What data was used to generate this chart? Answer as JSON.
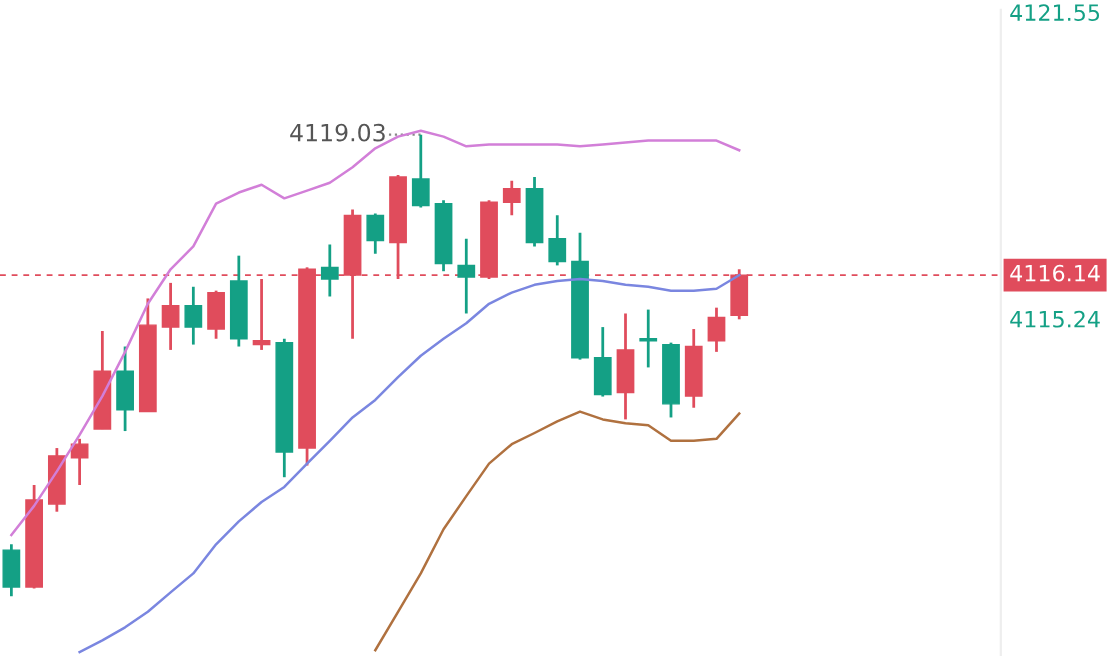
{
  "chart_data": {
    "type": "candlestick",
    "categories": [
      null,
      null,
      null,
      null,
      null,
      null,
      null,
      null,
      null,
      null,
      null,
      null,
      null,
      null,
      null,
      null,
      null,
      null,
      null,
      null,
      null,
      null,
      null,
      null,
      null,
      null,
      null,
      null,
      null,
      null,
      null,
      null,
      null
    ],
    "ohlc": [
      [
        4110.48,
        4110.6,
        4109.53,
        4109.72
      ],
      [
        4109.72,
        4111.82,
        4109.69,
        4111.51
      ],
      [
        4111.43,
        4112.58,
        4111.27,
        4112.42
      ],
      [
        4112.38,
        4112.77,
        4111.82,
        4112.66
      ],
      [
        4112.97,
        4114.99,
        4112.97,
        4114.16
      ],
      [
        4114.16,
        4114.67,
        4112.93,
        4113.37
      ],
      [
        4113.33,
        4115.66,
        4113.33,
        4115.11
      ],
      [
        4115.07,
        4115.98,
        4114.6,
        4115.51
      ],
      [
        4115.51,
        4115.9,
        4114.71,
        4115.07
      ],
      [
        4115.03,
        4115.82,
        4114.83,
        4115.78
      ],
      [
        4116.02,
        4116.54,
        4114.67,
        4114.83
      ],
      [
        4114.71,
        4116.06,
        4114.6,
        4114.79
      ],
      [
        4114.75,
        4114.83,
        4111.98,
        4112.5
      ],
      [
        4112.58,
        4116.3,
        4112.22,
        4116.26
      ],
      [
        4116.3,
        4116.77,
        4115.7,
        4116.06
      ],
      [
        4116.14,
        4117.49,
        4114.83,
        4117.37
      ],
      [
        4117.37,
        4117.41,
        4116.58,
        4116.85
      ],
      [
        4116.81,
        4118.2,
        4116.06,
        4118.16
      ],
      [
        4118.12,
        4119.03,
        4117.53,
        4117.57
      ],
      [
        4117.61,
        4117.68,
        4116.22,
        4116.38
      ],
      [
        4116.34,
        4116.89,
        4115.35,
        4116.1
      ],
      [
        4116.1,
        4117.68,
        4116.06,
        4117.64
      ],
      [
        4117.64,
        4118.08,
        4117.37,
        4117.92
      ],
      [
        4117.92,
        4118.16,
        4116.73,
        4116.81
      ],
      [
        4116.89,
        4117.37,
        4116.34,
        4116.42
      ],
      [
        4116.42,
        4117.01,
        4114.4,
        4114.44
      ],
      [
        4114.44,
        4115.07,
        4113.64,
        4113.68
      ],
      [
        4113.72,
        4115.35,
        4113.17,
        4114.6
      ],
      [
        4114.83,
        4115.43,
        4114.24,
        4114.79
      ],
      [
        4114.71,
        4114.75,
        4113.21,
        4113.49
      ],
      [
        4113.65,
        4115.03,
        4113.41,
        4114.67
      ],
      [
        4114.79,
        4115.47,
        4114.56,
        4115.27
      ],
      [
        4115.31,
        4116.26,
        4115.23,
        4116.14
      ]
    ],
    "colors": [
      "#14a085",
      "#e04c5c",
      "#e04c5c",
      "#e04c5c",
      "#e04c5c",
      "#14a085",
      "#e04c5c",
      "#e04c5c",
      "#14a085",
      "#e04c5c",
      "#14a085",
      "#e04c5c",
      "#14a085",
      "#e04c5c",
      "#14a085",
      "#e04c5c",
      "#14a085",
      "#e04c5c",
      "#14a085",
      "#14a085",
      "#14a085",
      "#e04c5c",
      "#e04c5c",
      "#14a085",
      "#14a085",
      "#14a085",
      "#14a085",
      "#e04c5c",
      "#14a085",
      "#14a085",
      "#e04c5c",
      "#e04c5c",
      "#e04c5c"
    ],
    "series": [
      {
        "type": "line",
        "color": "#d27fd8",
        "values": [
          4110.79,
          4111.39,
          4112.1,
          4112.85,
          4113.65,
          4114.56,
          4115.55,
          4116.26,
          4116.73,
          4117.61,
          4117.84,
          4118.0,
          4117.72,
          4117.88,
          4118.04,
          4118.36,
          4118.75,
          4118.99,
          4119.11,
          4118.99,
          4118.79,
          4118.83,
          4118.83,
          4118.83,
          4118.83,
          4118.79,
          4118.83,
          4118.87,
          4118.91,
          4118.91,
          4118.91,
          4118.91,
          4118.71
        ]
      },
      {
        "type": "line",
        "color": "#7a86e0",
        "values": [
          null,
          null,
          null,
          4108.38,
          4108.62,
          4108.89,
          4109.21,
          4109.61,
          4110.0,
          4110.6,
          4111.07,
          4111.47,
          4111.78,
          4112.26,
          4112.73,
          4113.21,
          4113.57,
          4114.04,
          4114.48,
          4114.83,
          4115.15,
          4115.55,
          4115.78,
          4115.94,
          4116.02,
          4116.06,
          4116.02,
          4115.94,
          4115.9,
          4115.82,
          4115.82,
          4115.86,
          4116.14
        ]
      },
      {
        "type": "line",
        "color": "#b0713f",
        "values": [
          null,
          null,
          null,
          null,
          null,
          null,
          null,
          null,
          null,
          null,
          null,
          null,
          null,
          null,
          null,
          null,
          4108.42,
          4109.21,
          4110.0,
          4110.91,
          4111.59,
          4112.26,
          4112.66,
          4112.89,
          4113.13,
          4113.33,
          4113.17,
          4113.09,
          4113.05,
          4112.73,
          4112.73,
          4112.77,
          4113.29
        ]
      }
    ],
    "ylim": [
      4108.3,
      4121.6
    ],
    "yticks": [
      4115.24,
      4121.55
    ],
    "tick_labels": "y",
    "grid": false,
    "ref_lines": [
      {
        "axis": "y",
        "value": 4116.14,
        "label": "4116.14",
        "color": "#e04c5c",
        "line_style": "dashed"
      }
    ],
    "annotations": [
      "4119.03"
    ]
  }
}
